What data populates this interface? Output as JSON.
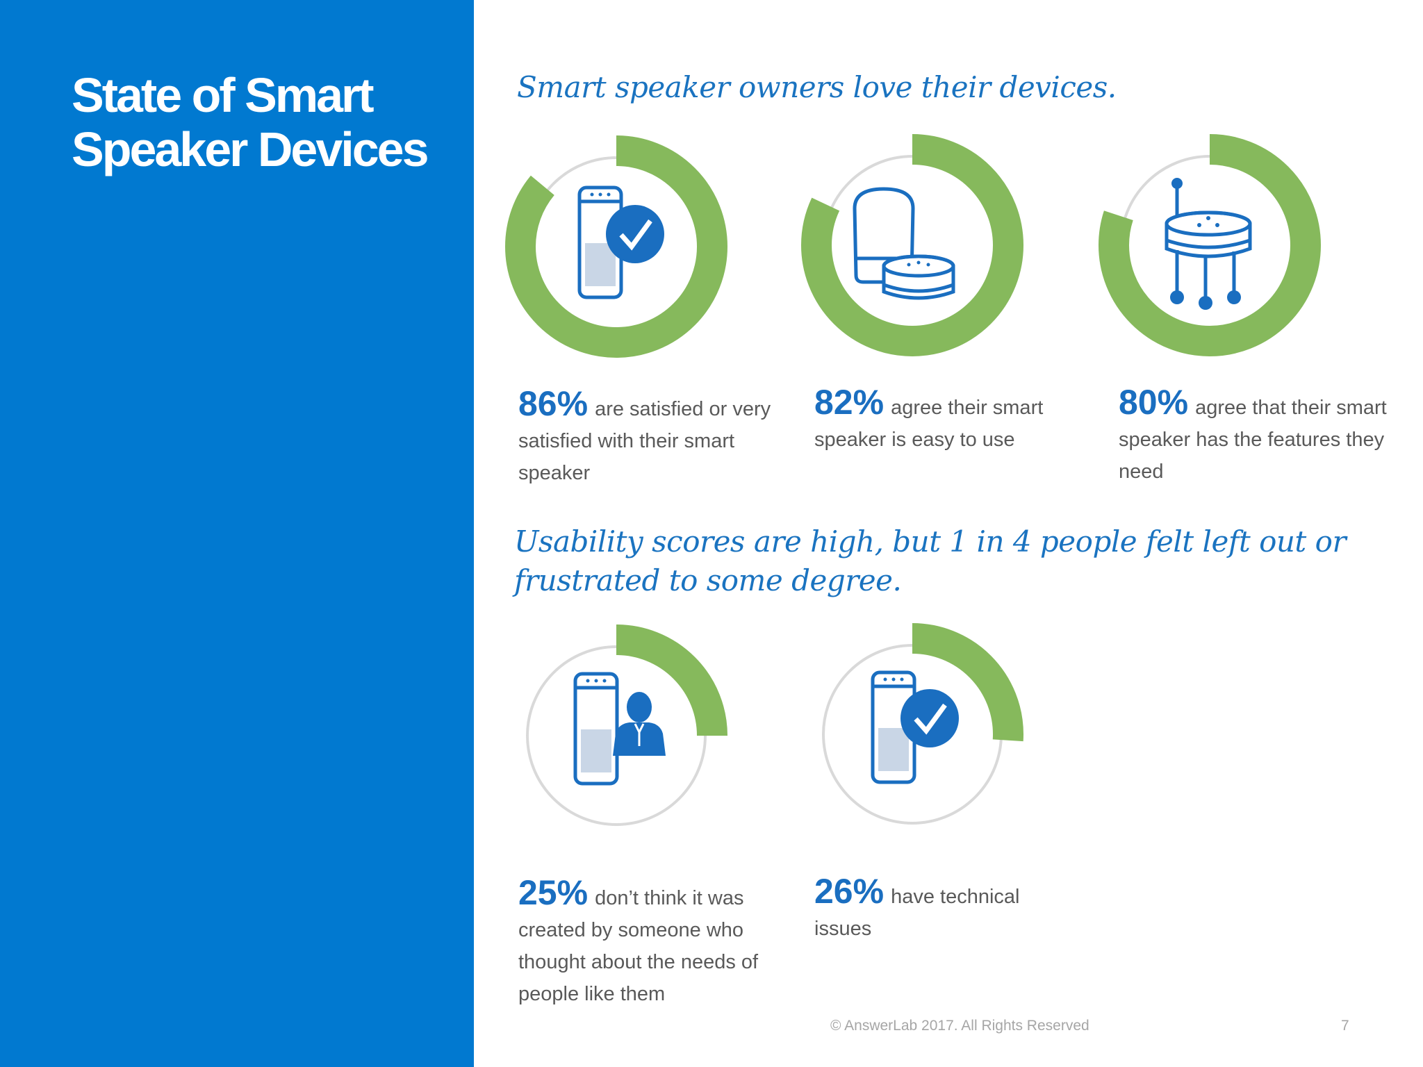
{
  "slide": {
    "title": "State of Smart Speaker Devices",
    "heading_1": "Smart speaker owners love their devices.",
    "heading_2": "Usability scores are high, but 1 in 4 people felt left out or frustrated to some degree.",
    "footer": "© AnswerLab 2017. All Rights Reserved",
    "page_number": "7"
  },
  "colors": {
    "panel_blue": "#0179d0",
    "accent_blue": "#1a6ec0",
    "ring_green": "#86b95c",
    "ring_gray": "#d9d9d9",
    "body_text": "#595959"
  },
  "stats": [
    {
      "percent": "86%",
      "value": 86,
      "text": "are satisfied or very satisfied with their smart speaker",
      "icon": "tall-speaker-checkmark-icon"
    },
    {
      "percent": "82%",
      "value": 82,
      "text": "agree their smart speaker is easy to use",
      "icon": "speaker-pair-icon"
    },
    {
      "percent": "80%",
      "value": 80,
      "text": "agree that their smart speaker has the features they need",
      "icon": "puck-speaker-connections-icon"
    },
    {
      "percent": "25%",
      "value": 25,
      "text": "don’t  think it was created by someone who thought about the needs of people like them",
      "icon": "tall-speaker-person-icon"
    },
    {
      "percent": "26%",
      "value": 26,
      "text": "have technical issues",
      "icon": "tall-speaker-checkmark-icon"
    }
  ]
}
